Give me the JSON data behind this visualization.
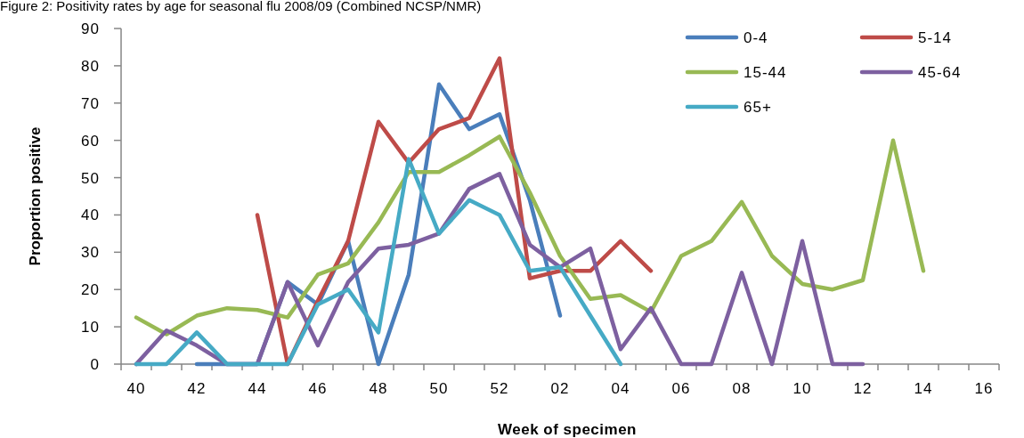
{
  "chart_data": {
    "type": "line",
    "title": "Figure 2: Positivity rates by age for seasonal flu 2008/09 (Combined NCSP/NMR)",
    "xlabel": "Week of specimen",
    "ylabel": "Proportion positive",
    "categories": [
      "40",
      null,
      "42",
      null,
      "44",
      null,
      "46",
      null,
      "48",
      null,
      "50",
      null,
      "52",
      null,
      "02",
      null,
      "04",
      null,
      "06",
      null,
      "08",
      null,
      "10",
      null,
      "12",
      null,
      "14",
      null,
      "16"
    ],
    "series": [
      {
        "name": "0-4",
        "color": "#4a7ebb",
        "values": [
          null,
          null,
          0,
          0,
          0,
          22,
          16,
          33,
          0,
          24,
          75,
          63,
          67,
          44,
          13,
          null,
          null,
          null,
          null,
          null,
          null,
          null,
          null,
          null,
          null,
          null,
          null,
          null,
          null
        ]
      },
      {
        "name": "5-14",
        "color": "#be4b48",
        "values": [
          null,
          null,
          null,
          null,
          40,
          0,
          17,
          33,
          65,
          54,
          63,
          66,
          82,
          23,
          25,
          25,
          33,
          25,
          null,
          null,
          null,
          null,
          null,
          null,
          null,
          null,
          null,
          null,
          null
        ]
      },
      {
        "name": "15-44",
        "color": "#98b954",
        "values": [
          12.5,
          8,
          13,
          15,
          14.5,
          12.5,
          24,
          27,
          38,
          51.5,
          51.5,
          56,
          61,
          46,
          29,
          17.5,
          18.5,
          14,
          29,
          33,
          43.5,
          29,
          21.5,
          20,
          22.5,
          60,
          25,
          null,
          null
        ]
      },
      {
        "name": "45-64",
        "color": "#7d60a0",
        "values": [
          0,
          9,
          5,
          0,
          0,
          22,
          5,
          22,
          31,
          32,
          35,
          47,
          51,
          32,
          26,
          31,
          4,
          15,
          0,
          0,
          24.5,
          0,
          33,
          0,
          0,
          null,
          null,
          null,
          null
        ]
      },
      {
        "name": "65+",
        "color": "#46aac5",
        "values": [
          0,
          0,
          8.5,
          0,
          0,
          0,
          16,
          20,
          8.5,
          55,
          35,
          44,
          40,
          25,
          26,
          13,
          0,
          null,
          null,
          null,
          null,
          null,
          null,
          null,
          null,
          null,
          null,
          null,
          null
        ]
      }
    ],
    "ylim": [
      0,
      90
    ],
    "yticks": [
      0,
      10,
      20,
      30,
      40,
      50,
      60,
      70,
      80,
      90
    ],
    "grid": false,
    "legend": "top right",
    "marker": "none",
    "line_style": "solid"
  }
}
